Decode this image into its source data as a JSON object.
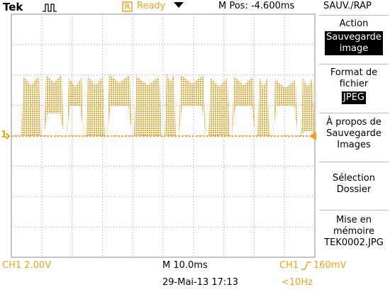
{
  "header": {
    "brand": "Tek",
    "status": "Ready",
    "position": "M Pos: -4.600ms",
    "menu_title": "SAUV./RAP"
  },
  "menu": [
    {
      "label": [
        "Action"
      ],
      "value": [
        "Sauvegarde",
        "image"
      ]
    },
    {
      "label": [
        "Format de",
        "fichier"
      ],
      "value": [
        "JPEG"
      ]
    },
    {
      "label": [
        "À propos de",
        "Sauvegarde",
        "Images"
      ]
    },
    {
      "label": [
        "Sélection",
        "Dossier"
      ]
    },
    {
      "label": [
        "Mise en",
        "mémoire"
      ],
      "value": [
        "TEK0002.JPG"
      ]
    }
  ],
  "markers": {
    "channel": "1"
  },
  "footer": {
    "channel_scale": "CH1  2.00V",
    "timebase": "M 10.0ms",
    "trigger_source": "CH1",
    "trigger_level": "160mV",
    "datetime": "29-Mai-13 17:13",
    "frequency": "<10Hz"
  }
}
